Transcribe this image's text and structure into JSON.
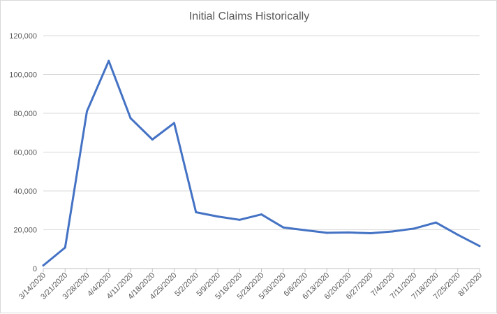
{
  "chart_data": {
    "type": "line",
    "title": "Initial Claims Historically",
    "xlabel": "",
    "ylabel": "",
    "categories": [
      "3/14/2020",
      "3/21/2020",
      "3/28/2020",
      "4/4/2020",
      "4/11/2020",
      "4/18/2020",
      "4/25/2020",
      "5/2/2020",
      "5/9/2020",
      "5/16/2020",
      "5/23/2020",
      "5/30/2020",
      "6/6/2020",
      "6/13/2020",
      "6/20/2020",
      "6/27/2020",
      "7/4/2020",
      "7/11/2020",
      "7/18/2020",
      "7/25/2020",
      "8/1/2020"
    ],
    "series": [
      {
        "values": [
          1600,
          10800,
          81000,
          107000,
          77500,
          66500,
          75000,
          29000,
          26800,
          25100,
          27900,
          21200,
          19800,
          18400,
          18600,
          18200,
          19100,
          20600,
          23700,
          17400,
          11600
        ],
        "color": "#4472c4"
      }
    ],
    "ylim": [
      0,
      120000
    ],
    "yticks": [
      "0",
      "20,000",
      "40,000",
      "60,000",
      "80,000",
      "100,000",
      "120,000"
    ],
    "grid": true,
    "legend": "none"
  }
}
